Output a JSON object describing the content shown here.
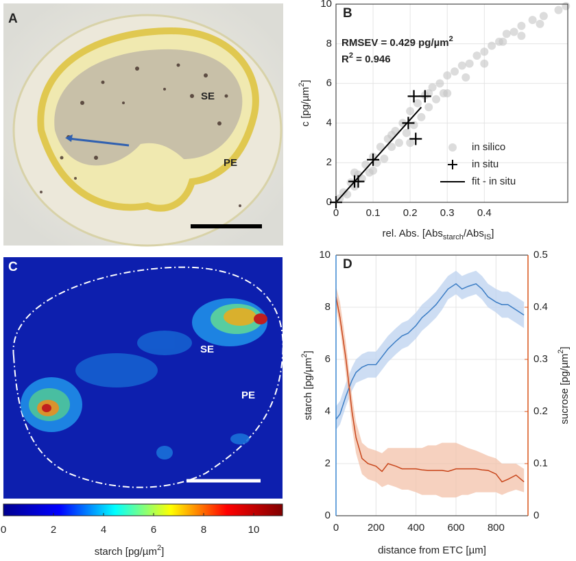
{
  "images": [
    {
      "label": "A",
      "regions": [
        "SE",
        "PE"
      ]
    },
    {
      "label": "C",
      "regions": [
        "SE",
        "PE"
      ]
    }
  ],
  "chart_data": [
    {
      "type": "scatter",
      "label": "B",
      "xlim": [
        0,
        0.625
      ],
      "xticks": [
        0,
        0.1,
        0.2,
        0.3,
        0.4
      ],
      "ylim": [
        0,
        10
      ],
      "yticks": [
        0,
        2,
        4,
        6,
        8,
        10
      ],
      "grid": true,
      "xlabel": {
        "parts": [
          "rel. Abs. [Abs",
          "starch",
          "/Abs",
          "IS",
          "]"
        ],
        "script": "sub"
      },
      "ylabel": {
        "parts": [
          "c [pg/µm",
          "2",
          "]"
        ],
        "script": "sup"
      },
      "annotations": [
        {
          "parts": [
            "RMSEV = 0.429 pg/µm",
            "2"
          ],
          "script": "sup"
        },
        {
          "parts": [
            "R",
            "2",
            " = 0.946"
          ],
          "script": "sup"
        }
      ],
      "legend": "lower right",
      "series": [
        {
          "name": "in silico",
          "marker": "circle",
          "color": "#c4c4c4",
          "x": [
            0.01,
            0.02,
            0.03,
            0.04,
            0.05,
            0.06,
            0.07,
            0.08,
            0.09,
            0.1,
            0.11,
            0.12,
            0.13,
            0.14,
            0.15,
            0.16,
            0.17,
            0.18,
            0.19,
            0.2,
            0.21,
            0.22,
            0.23,
            0.24,
            0.25,
            0.26,
            0.27,
            0.28,
            0.29,
            0.3,
            0.32,
            0.34,
            0.36,
            0.38,
            0.4,
            0.42,
            0.44,
            0.46,
            0.48,
            0.5,
            0.53,
            0.56,
            0.6,
            0.62,
            0.05,
            0.1,
            0.15,
            0.2,
            0.25,
            0.3,
            0.35,
            0.4,
            0.45,
            0.5,
            0.55
          ],
          "values": [
            0.2,
            0.5,
            0.4,
            1.0,
            0.8,
            1.4,
            1.2,
            1.9,
            1.5,
            2.3,
            2.0,
            2.8,
            2.2,
            3.2,
            2.8,
            3.6,
            3.0,
            4.0,
            3.5,
            4.6,
            3.9,
            5.0,
            4.3,
            5.4,
            4.8,
            5.8,
            5.2,
            6.0,
            5.5,
            6.4,
            6.6,
            6.9,
            7.0,
            7.4,
            7.6,
            7.9,
            8.1,
            8.5,
            8.6,
            8.9,
            9.2,
            9.4,
            9.7,
            9.9,
            1.5,
            1.6,
            3.4,
            3.0,
            5.5,
            5.5,
            6.3,
            7.0,
            8.1,
            8.4,
            9.0
          ]
        },
        {
          "name": "in situ",
          "marker": "plus",
          "color": "#000000",
          "x": [
            0,
            0.05,
            0.06,
            0.1,
            0.195,
            0.21,
            0.24,
            0.215
          ],
          "values": [
            0,
            1.05,
            1.05,
            2.15,
            4.0,
            5.35,
            5.35,
            3.2
          ]
        },
        {
          "name": "fit - in situ",
          "marker": "line",
          "color": "#000000",
          "x": [
            0,
            0.23
          ],
          "values": [
            0,
            4.8
          ]
        }
      ]
    },
    {
      "type": "colorbar",
      "xlim": [
        0,
        11.15
      ],
      "xticks": [
        0,
        2,
        4,
        6,
        8,
        10
      ],
      "xlabel": {
        "parts": [
          "starch [pg/µm",
          "2",
          "]"
        ],
        "script": "sup"
      },
      "colormap": [
        "#00008f",
        "#0000ff",
        "#00ffff",
        "#ffff00",
        "#ff0000",
        "#800000"
      ]
    },
    {
      "type": "line",
      "label": "D",
      "x": [
        0,
        20,
        50,
        80,
        100,
        130,
        160,
        200,
        230,
        260,
        300,
        330,
        360,
        400,
        430,
        460,
        500,
        530,
        560,
        600,
        630,
        660,
        700,
        730,
        760,
        800,
        830,
        860,
        900,
        940
      ],
      "xlim": [
        0,
        960
      ],
      "xticks": [
        0,
        200,
        400,
        600,
        800
      ],
      "ylim": [
        0,
        10
      ],
      "yticks": [
        0,
        2,
        4,
        6,
        8,
        10
      ],
      "y2lim": [
        0,
        0.5
      ],
      "y2ticks": [
        0,
        0.1,
        0.2,
        0.3,
        0.4,
        0.5
      ],
      "grid": true,
      "xlabel": "distance from ETC [µm]",
      "ylabel": {
        "parts": [
          "starch [pg/µm",
          "2",
          "]"
        ],
        "script": "sup"
      },
      "y2label": {
        "parts": [
          "sucrose [pg/µm",
          "2",
          "]"
        ],
        "script": "sup"
      },
      "y_color": "#3a86d0",
      "y2_color": "#d95319",
      "series": [
        {
          "axis": "y",
          "color": "#3a7cc4",
          "band_color": "#bcd2ef",
          "values": [
            3.7,
            3.9,
            4.6,
            5.2,
            5.5,
            5.7,
            5.8,
            5.8,
            6.1,
            6.4,
            6.7,
            6.9,
            7.0,
            7.3,
            7.6,
            7.8,
            8.1,
            8.4,
            8.7,
            8.9,
            8.7,
            8.8,
            8.9,
            8.7,
            8.4,
            8.2,
            8.1,
            8.1,
            7.9,
            7.7
          ],
          "lower": [
            3.3,
            3.5,
            4.2,
            4.8,
            5.1,
            5.2,
            5.3,
            5.3,
            5.6,
            5.9,
            6.2,
            6.4,
            6.5,
            6.8,
            7.1,
            7.3,
            7.6,
            7.9,
            8.3,
            8.5,
            8.3,
            8.4,
            8.5,
            8.3,
            8.0,
            7.8,
            7.6,
            7.6,
            7.4,
            7.2
          ],
          "upper": [
            4.2,
            4.4,
            5.1,
            5.7,
            6.0,
            6.2,
            6.3,
            6.3,
            6.6,
            6.9,
            7.2,
            7.4,
            7.5,
            7.8,
            8.1,
            8.3,
            8.6,
            8.9,
            9.2,
            9.4,
            9.2,
            9.3,
            9.4,
            9.2,
            8.9,
            8.7,
            8.6,
            8.6,
            8.4,
            8.2
          ]
        },
        {
          "axis": "y2",
          "color": "#c8451a",
          "band_color": "#f3c2aa",
          "values": [
            0.42,
            0.38,
            0.3,
            0.2,
            0.15,
            0.11,
            0.1,
            0.095,
            0.085,
            0.1,
            0.095,
            0.09,
            0.09,
            0.09,
            0.088,
            0.087,
            0.087,
            0.087,
            0.085,
            0.09,
            0.09,
            0.09,
            0.09,
            0.088,
            0.087,
            0.08,
            0.065,
            0.07,
            0.078,
            0.065
          ],
          "lower": [
            0.4,
            0.36,
            0.27,
            0.17,
            0.12,
            0.08,
            0.07,
            0.065,
            0.055,
            0.06,
            0.055,
            0.05,
            0.05,
            0.045,
            0.04,
            0.04,
            0.04,
            0.035,
            0.035,
            0.035,
            0.04,
            0.04,
            0.045,
            0.045,
            0.045,
            0.045,
            0.04,
            0.045,
            0.05,
            0.045
          ],
          "upper": [
            0.44,
            0.41,
            0.33,
            0.23,
            0.18,
            0.14,
            0.13,
            0.125,
            0.12,
            0.13,
            0.13,
            0.13,
            0.13,
            0.13,
            0.13,
            0.135,
            0.135,
            0.14,
            0.14,
            0.14,
            0.135,
            0.13,
            0.125,
            0.12,
            0.115,
            0.11,
            0.1,
            0.1,
            0.1,
            0.09
          ]
        }
      ]
    }
  ]
}
